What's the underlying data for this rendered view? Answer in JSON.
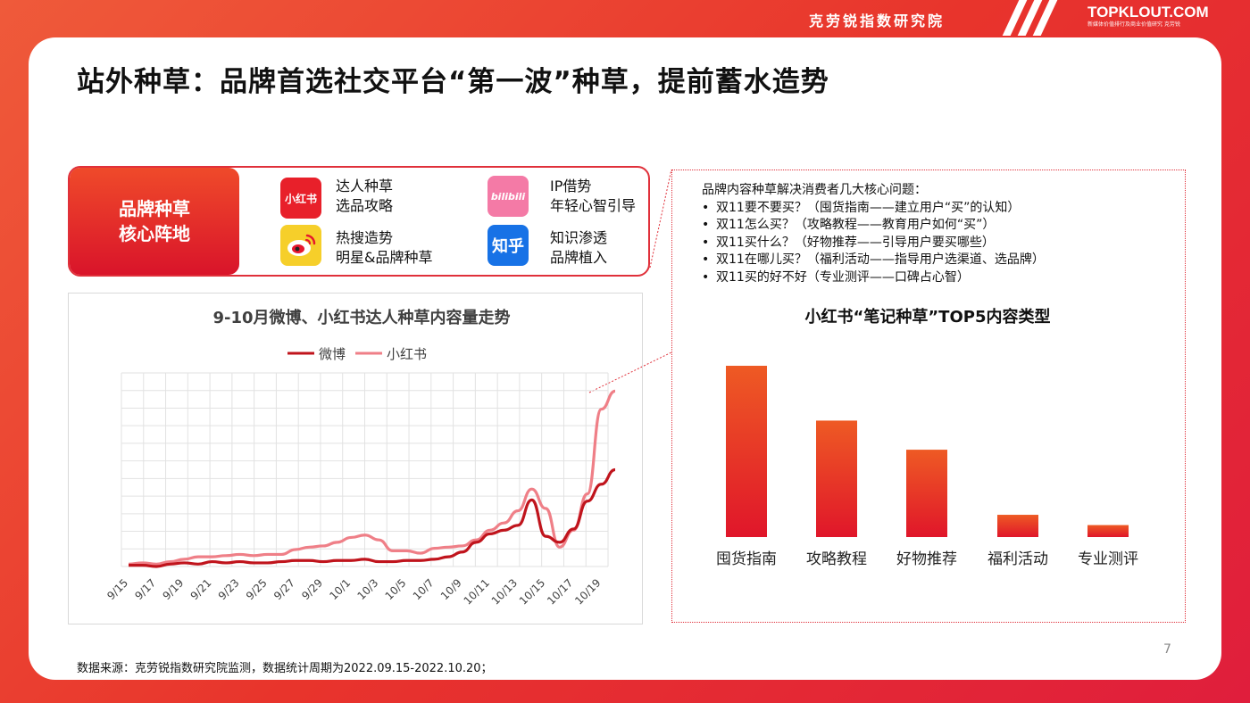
{
  "header": {
    "brand_cn": "克劳锐指数研究院",
    "logo_main": "TOPKLOUT.COM",
    "logo_sub": "新媒体价值排行及商业价值研究 克劳锐"
  },
  "title": "站外种草：品牌首选社交平台“第一波”种草，提前蓄水造势",
  "core": {
    "line1": "品牌种草",
    "line2": "核心阵地"
  },
  "platforms": [
    {
      "icon": "xiaohongshu-icon",
      "icon_text": "小红书",
      "line1": "达人种草",
      "line2": "选品攻略",
      "color": "#e8202a"
    },
    {
      "icon": "bilibili-icon",
      "icon_text": "bilibili",
      "line1": "IP借势",
      "line2": "年轻心智引导",
      "color": "#f26b9c"
    },
    {
      "icon": "weibo-icon",
      "icon_text": "",
      "line1": "热搜造势",
      "line2": "明星&品牌种草",
      "color": "#f4c21f"
    },
    {
      "icon": "zhihu-icon",
      "icon_text": "知乎",
      "line1": "知识渗透",
      "line2": "品牌植入",
      "color": "#1772e6"
    }
  ],
  "questions": {
    "heading": "品牌内容种草解决消费者几大核心问题：",
    "items": [
      "双11要不要买？（囤货指南——建立用户“买”的认知）",
      "双11怎么买？（攻略教程——教育用户如何“买”）",
      "双11买什么？（好物推荐——引导用户要买哪些）",
      "双11在哪儿买？（福利活动——指导用户选渠道、选品牌）",
      "双11买的好不好（专业测评——口碑占心智）"
    ]
  },
  "chart_data": [
    {
      "type": "line",
      "title": "9-10月微博、小红书达人种草内容量走势",
      "x": [
        "9/15",
        "9/16",
        "9/17",
        "9/18",
        "9/19",
        "9/20",
        "9/21",
        "9/22",
        "9/23",
        "9/24",
        "9/25",
        "9/26",
        "9/27",
        "9/28",
        "9/29",
        "9/30",
        "10/1",
        "10/2",
        "10/3",
        "10/4",
        "10/5",
        "10/6",
        "10/7",
        "10/8",
        "10/9",
        "10/10",
        "10/11",
        "10/12",
        "10/13",
        "10/14",
        "10/15",
        "10/16",
        "10/17",
        "10/18",
        "10/19",
        "10/20"
      ],
      "tick_labels": [
        "9/15",
        "9/17",
        "9/19",
        "9/21",
        "9/23",
        "9/25",
        "9/27",
        "9/29",
        "10/1",
        "10/3",
        "10/5",
        "10/7",
        "10/9",
        "10/11",
        "10/13",
        "10/15",
        "10/17",
        "10/19"
      ],
      "series": [
        {
          "name": "微博",
          "color": "#c0141c",
          "values": [
            1,
            1,
            0,
            2,
            3,
            2,
            4,
            3,
            4,
            3,
            3,
            4,
            5,
            5,
            4,
            5,
            5,
            6,
            4,
            4,
            5,
            5,
            6,
            8,
            12,
            20,
            27,
            30,
            34,
            55,
            25,
            20,
            31,
            54,
            68,
            80
          ]
        },
        {
          "name": "小红书",
          "color": "#ef7f87",
          "values": [
            2,
            3,
            2,
            4,
            6,
            8,
            8,
            9,
            10,
            9,
            10,
            10,
            14,
            16,
            17,
            20,
            24,
            26,
            22,
            13,
            13,
            11,
            15,
            16,
            17,
            22,
            30,
            36,
            46,
            64,
            48,
            16,
            30,
            60,
            130,
            145
          ]
        }
      ],
      "ylim": [
        0,
        160
      ],
      "grid": true,
      "legend": "top-center"
    },
    {
      "type": "bar",
      "title": "小红书“笔记种草”TOP5内容类型",
      "categories": [
        "囤货指南",
        "攻略教程",
        "好物推荐",
        "福利活动",
        "专业测评"
      ],
      "values": [
        100,
        68,
        51,
        13,
        7
      ],
      "ylim": [
        0,
        100
      ]
    }
  ],
  "source": "数据来源：克劳锐指数研究院监测，数据统计周期为2022.09.15-2022.10.20；",
  "page_number": "7"
}
